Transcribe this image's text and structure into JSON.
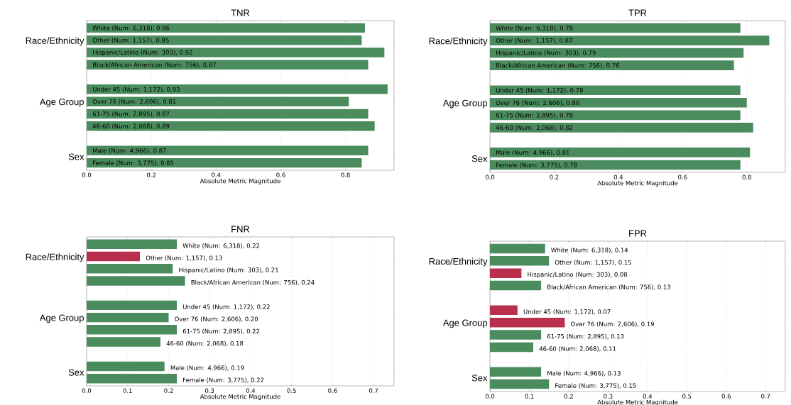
{
  "chart_data": [
    {
      "type": "bar",
      "orientation": "horizontal",
      "title": "TNR",
      "xlabel": "Absolute Metric Magnitude",
      "categories": [
        null,
        null,
        null,
        null,
        null,
        null,
        null,
        null,
        null,
        null,
        null,
        null
      ],
      "values": [
        0.86,
        0.85,
        0.92,
        0.87,
        null,
        0.93,
        0.81,
        0.87,
        0.89,
        null,
        0.87,
        0.85
      ],
      "value_labels": [
        "White (Num: 6,318), 0.86",
        "Other (Num: 1,157), 0.85",
        "Hispanic/Latino (Num: 303), 0.92",
        "Black/African American (Num: 756), 0.87",
        null,
        "Under 45 (Num: 1,172), 0.93",
        "Over 76 (Num: 2,606), 0.81",
        "61-75 (Num: 2,895), 0.87",
        "46-60 (Num: 2,068), 0.89",
        null,
        "Male (Num: 4,966), 0.87",
        "Female (Num: 3,775), 0.85"
      ],
      "colors": [
        "#4a8c5e",
        "#4a8c5e",
        "#4a8c5e",
        "#4a8c5e",
        null,
        "#4a8c5e",
        "#4a8c5e",
        "#4a8c5e",
        "#4a8c5e",
        null,
        "#4a8c5e",
        "#4a8c5e"
      ],
      "xlim": [
        0,
        0.95
      ],
      "xticks": [
        {
          "value": 0,
          "label": "0.0"
        },
        {
          "value": 0.2,
          "label": "0.2"
        },
        {
          "value": 0.4,
          "label": "0.4"
        },
        {
          "value": 0.6,
          "label": "0.6"
        },
        {
          "value": 0.8,
          "label": "0.8"
        }
      ],
      "grid": "x",
      "annotations": [
        "Race/Ethnicity",
        "Age Group",
        "Sex"
      ]
    },
    {
      "type": "bar",
      "orientation": "horizontal",
      "title": "TPR",
      "xlabel": "Absolute Metric Magnitude",
      "categories": [
        null,
        null,
        null,
        null,
        null,
        null,
        null,
        null,
        null,
        null,
        null,
        null
      ],
      "values": [
        0.78,
        0.87,
        0.79,
        0.76,
        null,
        0.78,
        0.8,
        0.78,
        0.82,
        null,
        0.81,
        0.78
      ],
      "value_labels": [
        "White (Num: 6,318), 0.78",
        "Other (Num: 1,157), 0.87",
        "Hispanic/Latino (Num: 303), 0.79",
        "Black/African American (Num: 756), 0.76",
        null,
        "Under 45 (Num: 1,172), 0.78",
        "Over 76 (Num: 2,606), 0.80",
        "61-75 (Num: 2,895), 0.78",
        "46-60 (Num: 2,068), 0.82",
        null,
        "Male (Num: 4,966), 0.81",
        "Female (Num: 3,775), 0.78"
      ],
      "colors": [
        "#4a8c5e",
        "#4a8c5e",
        "#4a8c5e",
        "#4a8c5e",
        null,
        "#4a8c5e",
        "#4a8c5e",
        "#4a8c5e",
        "#4a8c5e",
        null,
        "#4a8c5e",
        "#4a8c5e"
      ],
      "xlim": [
        0,
        0.92
      ],
      "xticks": [
        {
          "value": 0,
          "label": "0.0"
        },
        {
          "value": 0.2,
          "label": "0.2"
        },
        {
          "value": 0.4,
          "label": "0.4"
        },
        {
          "value": 0.6,
          "label": "0.6"
        },
        {
          "value": 0.8,
          "label": "0.8"
        }
      ],
      "grid": "x",
      "annotations": [
        "Race/Ethnicity",
        "Age Group",
        "Sex"
      ]
    },
    {
      "type": "bar",
      "orientation": "horizontal",
      "title": "FNR",
      "xlabel": "Absolute Metric Magnitude",
      "categories": [
        null,
        null,
        null,
        null,
        null,
        null,
        null,
        null,
        null,
        null,
        null,
        null
      ],
      "values": [
        0.22,
        0.13,
        0.21,
        0.24,
        null,
        0.22,
        0.2,
        0.22,
        0.18,
        null,
        0.19,
        0.22
      ],
      "value_labels": [
        "White (Num: 6,318), 0.22",
        "Other (Num: 1,157), 0.13",
        "Hispanic/Latino (Num: 303), 0.21",
        "Black/African American (Num: 756), 0.24",
        null,
        "Under 45 (Num: 1,172), 0.22",
        "Over 76 (Num: 2,606), 0.20",
        "61-75 (Num: 2,895), 0.22",
        "46-60 (Num: 2,068), 0.18",
        null,
        "Male (Num: 4,966), 0.19",
        "Female (Num: 3,775), 0.22"
      ],
      "colors": [
        "#4a8c5e",
        "#b8304c",
        "#4a8c5e",
        "#4a8c5e",
        null,
        "#4a8c5e",
        "#4a8c5e",
        "#4a8c5e",
        "#4a8c5e",
        null,
        "#4a8c5e",
        "#4a8c5e"
      ],
      "xlim": [
        0,
        0.75
      ],
      "xticks": [
        {
          "value": 0,
          "label": "0.0"
        },
        0.1,
        0.2,
        0.3,
        0.4,
        0.5,
        0.6,
        0.7
      ],
      "grid": "x",
      "annotations": [
        "Race/Ethnicity",
        "Age Group",
        "Sex"
      ]
    },
    {
      "type": "bar",
      "orientation": "horizontal",
      "title": "FPR",
      "xlabel": "Absolute Metric Magnitude",
      "categories": [
        null,
        null,
        null,
        null,
        null,
        null,
        null,
        null,
        null,
        null,
        null,
        null
      ],
      "values": [
        0.14,
        0.15,
        0.08,
        0.13,
        null,
        0.07,
        0.19,
        0.13,
        0.11,
        null,
        0.13,
        0.15
      ],
      "value_labels": [
        "White (Num: 6,318), 0.14",
        "Other (Num: 1,157), 0.15",
        "Hispanic/Latino (Num: 303), 0.08",
        "Black/African American (Num: 756), 0.13",
        null,
        "Under 45 (Num: 1,172), 0.07",
        "Over 76 (Num: 2,606), 0.19",
        "61-75 (Num: 2,895), 0.13",
        "46-60 (Num: 2,068), 0.11",
        null,
        "Male (Num: 4,966), 0.13",
        "Female (Num: 3,775), 0.15"
      ],
      "colors": [
        "#4a8c5e",
        "#4a8c5e",
        "#b8304c",
        "#4a8c5e",
        null,
        "#b8304c",
        "#b8304c",
        "#4a8c5e",
        "#4a8c5e",
        null,
        "#4a8c5e",
        "#4a8c5e"
      ],
      "xlim": [
        0,
        0.75
      ],
      "xticks": [
        {
          "value": 0,
          "label": "0.0"
        },
        0.1,
        0.2,
        0.3,
        0.4,
        0.5,
        0.6,
        0.7
      ],
      "grid": "x",
      "annotations": [
        "Race/Ethnicity",
        "Age Group",
        "Sex"
      ]
    }
  ]
}
